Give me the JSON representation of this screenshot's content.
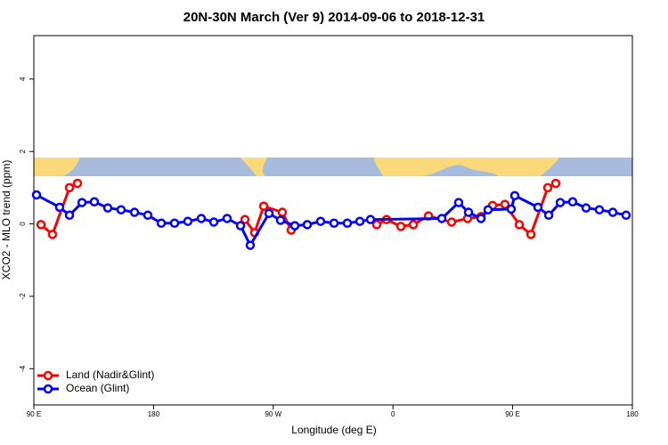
{
  "chart_data": {
    "type": "line",
    "title": "20N-30N March (Ver 9)   2014-09-06 to 2018-12-31",
    "x_label": "Longitude (deg E)",
    "y_label": "XCO2 - MLO trend (ppm)",
    "xlim": [
      90,
      540
    ],
    "ylim": [
      -5,
      5.2
    ],
    "xticks": [
      {
        "value": 90,
        "label": "90 E"
      },
      180,
      {
        "value": 270,
        "label": "90 W"
      },
      {
        "value": 360,
        "label": "0"
      },
      {
        "value": 450,
        "label": "90 E"
      },
      180
    ],
    "yticks": [
      -4,
      -2,
      0,
      2,
      4
    ],
    "legend": "bottom-left",
    "series": [
      {
        "name": "Land (Nadir&Glint)",
        "color": "#ff0000",
        "x": [
          95.4,
          104,
          116.8,
          122.8,
          null,
          248.7,
          256,
          262.8,
          276.8,
          283.5,
          null,
          347.8,
          355.2,
          365.9,
          375.3,
          386.7,
          404.1,
          416.1,
          426.2,
          434.9,
          444.2,
          455,
          463.7,
          476.4,
          482.4
        ],
        "values": [
          -0.02,
          -0.29,
          1.0,
          1.12,
          null,
          0.12,
          -0.24,
          0.49,
          0.32,
          -0.17,
          null,
          -0.02,
          0.12,
          -0.07,
          -0.02,
          0.22,
          0.05,
          0.15,
          0.2,
          0.51,
          0.54,
          -0.02,
          -0.29,
          1.0,
          1.12
        ]
      },
      {
        "name": "Ocean (Glint)",
        "color": "#0000ff",
        "x": [
          92,
          109.4,
          116.8,
          126.2,
          135.5,
          145.6,
          155.6,
          165.7,
          175.7,
          185.8,
          195.8,
          205.8,
          215.9,
          225.3,
          235.3,
          245.4,
          252.7,
          266.8,
          275.5,
          286.2,
          295.6,
          305.6,
          315.7,
          325.7,
          335.1,
          343.1,
          396.7,
          409.4,
          416.8,
          426.2,
          431.5,
          448.9,
          451.6,
          469,
          477.1,
          485.8,
          495.1,
          505.2,
          515.2,
          525.3,
          535.3
        ],
        "values": [
          0.8,
          0.46,
          0.24,
          0.59,
          0.61,
          0.44,
          0.39,
          0.32,
          0.24,
          0.02,
          0.02,
          0.07,
          0.15,
          0.05,
          0.15,
          -0.05,
          -0.59,
          0.29,
          0.1,
          -0.05,
          -0.02,
          0.07,
          0.02,
          0.02,
          0.07,
          0.12,
          0.15,
          0.59,
          0.32,
          0.15,
          0.39,
          0.41,
          0.78,
          0.46,
          0.24,
          0.59,
          0.61,
          0.44,
          0.39,
          0.32,
          0.24
        ]
      }
    ]
  }
}
